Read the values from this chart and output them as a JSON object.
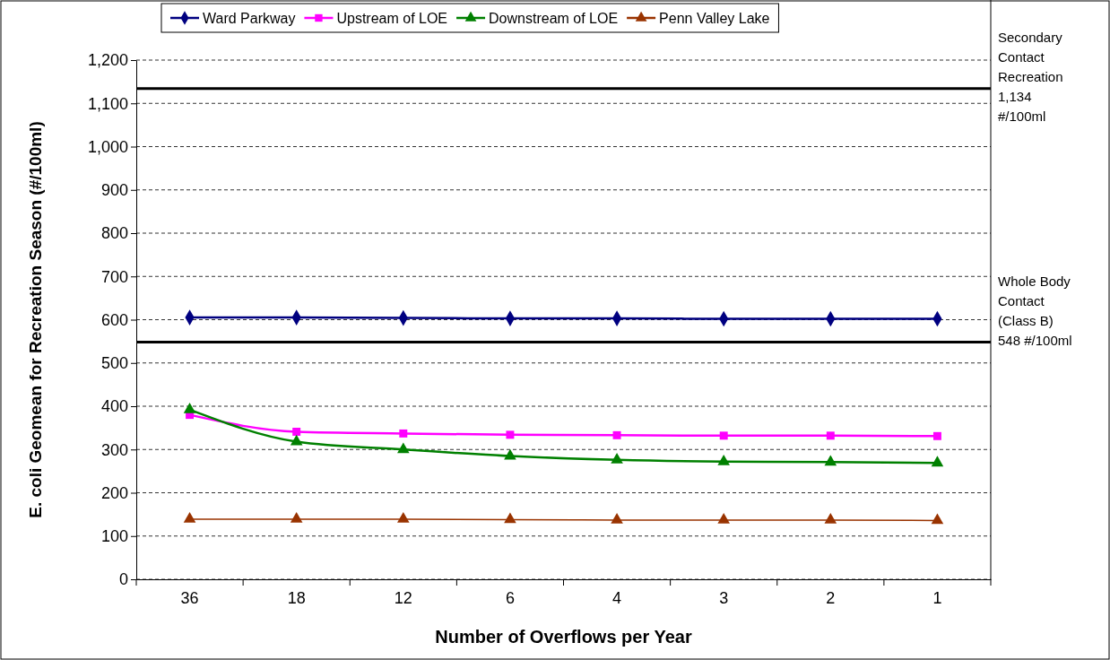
{
  "chart_data": {
    "type": "line",
    "xlabel": "Number of Overflows per Year",
    "ylabel": "E. coli Geomean for Recreation Season (#/100ml)",
    "categories": [
      "36",
      "18",
      "12",
      "6",
      "4",
      "3",
      "2",
      "1"
    ],
    "series": [
      {
        "name": "Ward Parkway",
        "color": "#000080",
        "marker": "diamond",
        "values": [
          605,
          605,
          604,
          603,
          603,
          602,
          602,
          602
        ]
      },
      {
        "name": "Upstream of LOE",
        "color": "#ff00ff",
        "marker": "square",
        "values": [
          380,
          341,
          337,
          334,
          333,
          332,
          332,
          331
        ]
      },
      {
        "name": "Downstream of LOE",
        "color": "#008000",
        "marker": "triangle",
        "values": [
          392,
          318,
          300,
          285,
          276,
          272,
          271,
          269
        ]
      },
      {
        "name": "Penn Valley Lake",
        "color": "#993300",
        "marker": "triangle",
        "values": [
          139,
          139,
          139,
          138,
          137,
          137,
          137,
          136
        ]
      }
    ],
    "ylim": [
      0,
      1200
    ],
    "yticks": [
      0,
      100,
      200,
      300,
      400,
      500,
      600,
      700,
      800,
      900,
      {
        "value": 1000,
        "label": "1,000"
      },
      {
        "value": 1100,
        "label": "1,100"
      },
      {
        "value": 1200,
        "label": "1,200"
      }
    ],
    "ref_lines": [
      {
        "axis": "y",
        "value": 1134,
        "label": "Secondary\nContact\nRecreation\n1,134\n#/100ml",
        "color": "#000000"
      },
      {
        "axis": "y",
        "value": 548,
        "label": "Whole Body\nContact\n(Class B)\n548 #/100ml",
        "color": "#000000"
      }
    ],
    "grid": "y",
    "legend": "top",
    "line_style": "solid"
  }
}
